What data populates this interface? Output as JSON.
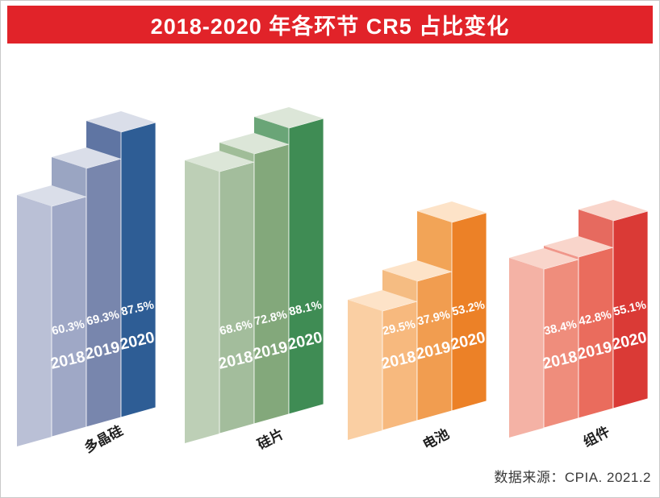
{
  "title": "2018-2020 年各环节 CR5 占比变化",
  "source_note": "数据来源：CPIA. 2021.2",
  "banner_color": "#e12329",
  "chart_data": {
    "type": "bar",
    "title": "2018-2020 年各环节 CR5 占比变化",
    "x_groups": [
      "多晶硅",
      "硅片",
      "电池",
      "组件"
    ],
    "years": [
      "2018",
      "2019",
      "2020"
    ],
    "series": [
      {
        "name": "多晶硅",
        "values": [
          60.3,
          69.3,
          87.5
        ]
      },
      {
        "name": "硅片",
        "values": [
          68.6,
          72.8,
          88.1
        ]
      },
      {
        "name": "电池",
        "values": [
          29.5,
          37.9,
          53.2
        ]
      },
      {
        "name": "组件",
        "values": [
          38.4,
          42.8,
          55.1
        ]
      }
    ],
    "unit": "%",
    "value_label_format": "{value}%",
    "legend": "none",
    "axes": "none (pictorial 3D step bars, values labeled on bar faces)",
    "source": "数据来源：CPIA. 2021.2",
    "palette": [
      {
        "group": "多晶硅",
        "top": "#dadee9",
        "faces": [
          "#9fa8c6",
          "#7886ad",
          "#2e5d95"
        ],
        "sides": [
          "#bac0d6",
          "#9aa5c2",
          "#5f75a3"
        ]
      },
      {
        "group": "硅片",
        "top": "#dce6d8",
        "faces": [
          "#a3bd9c",
          "#83a87b",
          "#3f8c54"
        ],
        "sides": [
          "#bdcfb6",
          "#a0bd98",
          "#6aa577"
        ]
      },
      {
        "group": "电池",
        "top": "#fde3c8",
        "faces": [
          "#f7b97e",
          "#f19d50",
          "#ec8127"
        ],
        "sides": [
          "#facfa3",
          "#f5bc82",
          "#f2a457"
        ]
      },
      {
        "group": "组件",
        "top": "#f9d5cb",
        "faces": [
          "#ef8d7c",
          "#ea6c5d",
          "#da3a36"
        ],
        "sides": [
          "#f4b2a5",
          "#f0968a",
          "#e66a5f"
        ]
      }
    ]
  }
}
